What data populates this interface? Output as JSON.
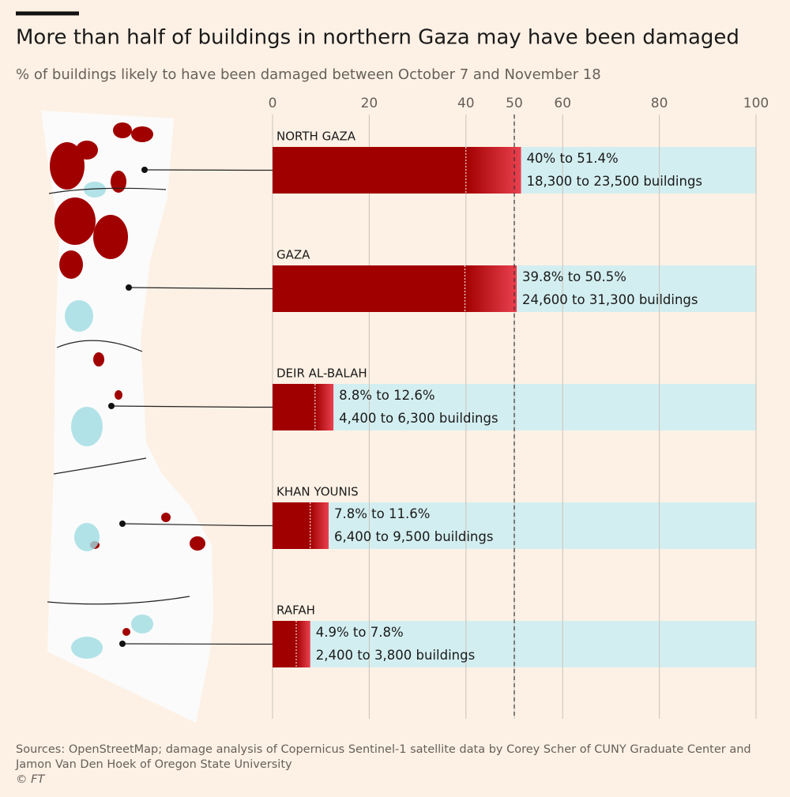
{
  "chart_data": {
    "type": "range-bar",
    "title": "More than half of buildings in northern Gaza may have been damaged",
    "subtitle": "% of buildings likely to have been damaged between October 7 and November 18",
    "categories": [
      "NORTH GAZA",
      "GAZA",
      "DEIR AL-BALAH",
      "KHAN YOUNIS",
      "RAFAH"
    ],
    "low": [
      40,
      39.8,
      8.8,
      7.8,
      4.9
    ],
    "high": [
      51.4,
      50.5,
      12.6,
      11.6,
      7.8
    ],
    "range_labels": [
      "40% to 51.4%",
      "39.8% to 50.5%",
      "8.8% to 12.6%",
      "7.8% to 11.6%",
      "4.9% to 7.8%"
    ],
    "count_labels": [
      "18,300 to 23,500 buildings",
      "24,600 to 31,300 buildings",
      "4,400 to 6,300 buildings",
      "6,400 to 9,500 buildings",
      "2,400 to 3,800 buildings"
    ],
    "xlim": [
      0,
      100
    ],
    "xticks": [
      0,
      20,
      40,
      50,
      60,
      80,
      100
    ],
    "reference_line": 50,
    "grid": true,
    "color": "#a10000",
    "gradient_color": "#ea4150",
    "track_color": "#d3eef0",
    "source": "Sources: OpenStreetMap; damage analysis of Copernicus Sentinel-1 satellite data by Corey Scher of CUNY Graduate Center and Jamon Van Den Hoek of Oregon State University",
    "credit": "© FT"
  }
}
